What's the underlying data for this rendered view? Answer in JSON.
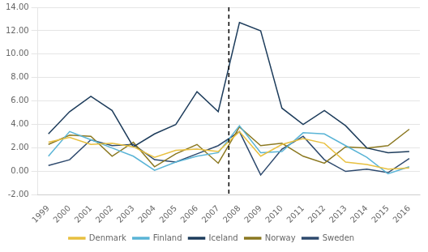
{
  "chart_data": {
    "type": "line",
    "x": [
      1999,
      2000,
      2001,
      2002,
      2003,
      2004,
      2005,
      2006,
      2007,
      2008,
      2009,
      2010,
      2011,
      2012,
      2013,
      2014,
      2015,
      2016
    ],
    "series": [
      {
        "name": "Denmark",
        "color": "#e8c040",
        "values": [
          2.5,
          2.9,
          2.3,
          2.4,
          2.1,
          1.2,
          1.8,
          1.9,
          1.7,
          3.4,
          1.3,
          2.3,
          2.8,
          2.4,
          0.8,
          0.6,
          0.2,
          0.3
        ]
      },
      {
        "name": "Finland",
        "color": "#5ab4d6",
        "values": [
          1.3,
          3.4,
          2.7,
          2.0,
          1.3,
          0.1,
          0.8,
          1.3,
          1.6,
          3.9,
          1.6,
          1.7,
          3.3,
          3.2,
          2.2,
          1.2,
          -0.2,
          0.4
        ]
      },
      {
        "name": "Iceland",
        "color": "#1e3d5c",
        "values": [
          3.2,
          5.1,
          6.4,
          5.2,
          2.1,
          3.2,
          4.0,
          6.8,
          5.1,
          12.7,
          12.0,
          5.4,
          4.0,
          5.2,
          3.9,
          2.0,
          1.6,
          1.7
        ]
      },
      {
        "name": "Norway",
        "color": "#8b7820",
        "values": [
          2.3,
          3.1,
          3.0,
          1.3,
          2.5,
          0.4,
          1.5,
          2.3,
          0.7,
          3.8,
          2.2,
          2.4,
          1.3,
          0.7,
          2.1,
          2.0,
          2.2,
          3.6
        ]
      },
      {
        "name": "Sweden",
        "color": "#2e4a6e",
        "values": [
          0.5,
          1.0,
          2.7,
          2.2,
          2.3,
          1.0,
          0.8,
          1.5,
          2.2,
          3.4,
          -0.3,
          1.9,
          3.0,
          1.0,
          0.0,
          0.2,
          -0.1,
          1.1
        ]
      }
    ],
    "xlim": [
      1998.5,
      2016.5
    ],
    "xticks": [
      1999,
      2000,
      2001,
      2002,
      2003,
      2004,
      2005,
      2006,
      2007,
      2008,
      2009,
      2010,
      2011,
      2012,
      2013,
      2014,
      2015,
      2016
    ],
    "ylim": [
      -2.0,
      14.0
    ],
    "yticks": [
      {
        "value": -2.0,
        "label": "-2.00"
      },
      {
        "value": 0.0,
        "label": "0.00"
      },
      {
        "value": 2.0,
        "label": "2.00"
      },
      {
        "value": 4.0,
        "label": "4.00"
      },
      {
        "value": 6.0,
        "label": "6.00"
      },
      {
        "value": 8.0,
        "label": "8.00"
      },
      {
        "value": 10.0,
        "label": "10.00"
      },
      {
        "value": 12.0,
        "label": "12.00"
      },
      {
        "value": 14.0,
        "label": "14.00"
      }
    ],
    "annotations": [
      {
        "x": 2007.5,
        "line_style": "dashed",
        "color": "#000000"
      }
    ],
    "grid": "y",
    "legend": "bottom"
  }
}
